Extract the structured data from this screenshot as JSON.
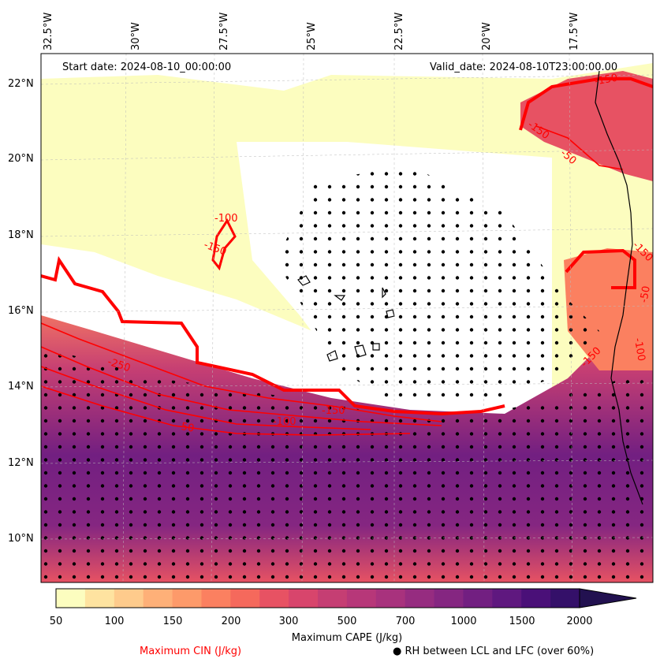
{
  "map": {
    "start_date": "Start date: 2024-08-10_00:00:00",
    "valid_date": "Valid_date: 2024-08-10T23:00:00.00",
    "lon_labels": [
      "32.5°W",
      "30°W",
      "27.5°W",
      "25°W",
      "22.5°W",
      "20°W",
      "17.5°W"
    ],
    "lat_labels": [
      "22°N",
      "20°N",
      "18°N",
      "16°N",
      "14°N",
      "12°N",
      "10°N"
    ],
    "cin_contour_labels": [
      "-250",
      "-150",
      "-100",
      "-50",
      "-100",
      "-150",
      "-150",
      "-150",
      "-50",
      "-150",
      "-50",
      "-100",
      "-150"
    ],
    "fill_variable": "Maximum CAPE (J/kg)",
    "contour_variable": "Maximum CIN (J/kg)",
    "contour_color": "#ff0000",
    "stipple_variable": "RH between LCL and LFC (over 60%)"
  },
  "colorbar": {
    "title": "Maximum CAPE (J/kg)",
    "ticks": [
      "50",
      "100",
      "150",
      "200",
      "300",
      "500",
      "700",
      "1000",
      "1500",
      "2000"
    ],
    "colors": [
      "#fcfdbf",
      "#fee3a0",
      "#fecb8c",
      "#feb078",
      "#fd9a6a",
      "#fb8060",
      "#f5695c",
      "#e75263",
      "#d8456c",
      "#c53e73",
      "#b73779",
      "#a8327d",
      "#962c80",
      "#852681",
      "#721f81",
      "#5f187f",
      "#4a1078",
      "#341069",
      "#221150"
    ],
    "extend": "max"
  },
  "legend": {
    "cin_label": "Maximum CIN (J/kg)",
    "cin_color": "#ff0000",
    "rh_label": "RH between LCL and LFC (over 60%)",
    "rh_marker": "●"
  }
}
